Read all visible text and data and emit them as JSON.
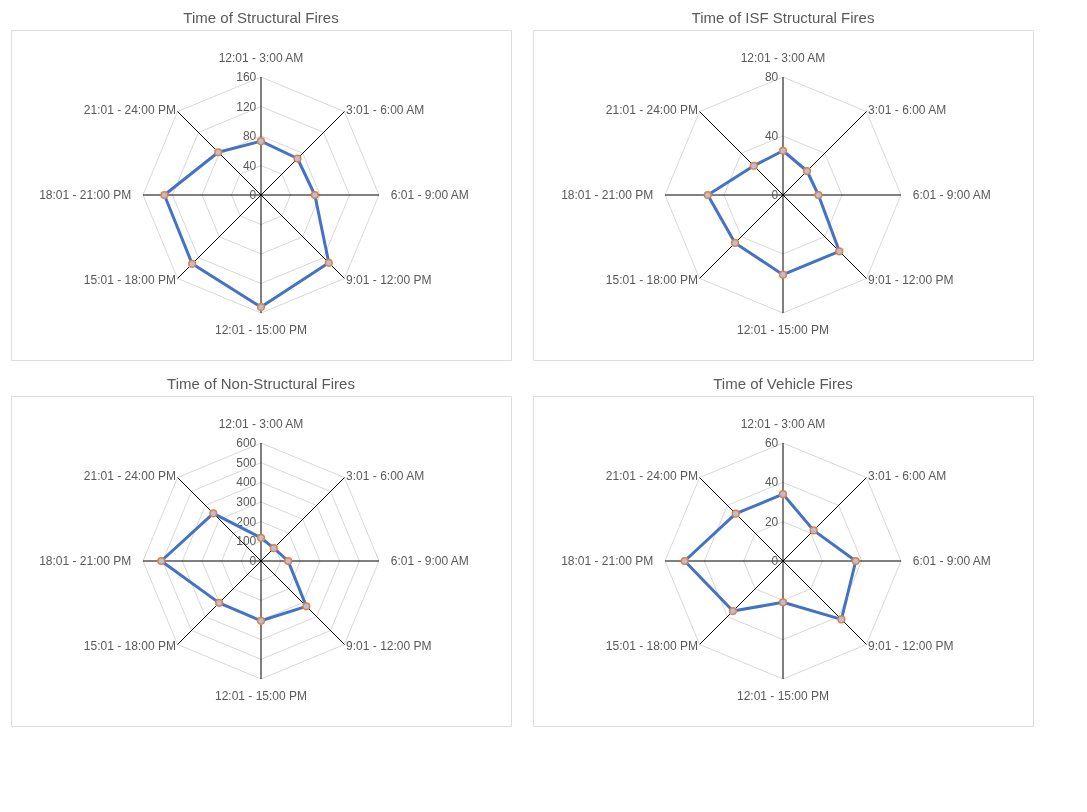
{
  "chart_data": [
    {
      "type": "radar",
      "title": "Time of Structural Fires",
      "categories": [
        "12:01 - 3:00 AM",
        "3:01 - 6:00 AM",
        "6:01 - 9:00 AM",
        "9:01 - 12:00 PM",
        "12:01 - 15:00 PM",
        "15:01 - 18:00 PM",
        "18:01 - 21:00 PM",
        "21:01 - 24:00 PM"
      ],
      "series": [
        {
          "color": "#4472c4",
          "values": [
            73,
            70,
            73,
            130,
            152,
            132,
            131,
            82
          ]
        }
      ],
      "ylim": [
        0,
        160
      ],
      "yticks": [
        0,
        40,
        80,
        120,
        160
      ],
      "grid": true,
      "marker": "circle"
    },
    {
      "type": "radar",
      "title": "Time of ISF Structural Fires",
      "categories": [
        "12:01 - 3:00 AM",
        "3:01 - 6:00 AM",
        "6:01 - 9:00 AM",
        "9:01 - 12:00 PM",
        "12:01 - 15:00 PM",
        "15:01 - 18:00 PM",
        "18:01 - 21:00 PM",
        "21:01 - 24:00 PM"
      ],
      "series": [
        {
          "color": "#4472c4",
          "values": [
            30,
            23,
            24,
            54,
            54,
            46,
            51,
            28
          ]
        }
      ],
      "ylim": [
        0,
        80
      ],
      "yticks": [
        0,
        40,
        80
      ],
      "grid": true,
      "marker": "circle"
    },
    {
      "type": "radar",
      "title": "Time of Non-Structural Fires",
      "categories": [
        "12:01 - 3:00 AM",
        "3:01 - 6:00 AM",
        "6:01 - 9:00 AM",
        "9:01 - 12:00 PM",
        "12:01 - 15:00 PM",
        "15:01 - 18:00 PM",
        "18:01 - 21:00 PM",
        "21:01 - 24:00 PM"
      ],
      "series": [
        {
          "color": "#4472c4",
          "values": [
            118,
            92,
            138,
            326,
            304,
            301,
            507,
            343
          ]
        }
      ],
      "ylim": [
        0,
        600
      ],
      "yticks": [
        0,
        100,
        200,
        300,
        400,
        500,
        600
      ],
      "grid": true,
      "marker": "circle"
    },
    {
      "type": "radar",
      "title": "Time of Vehicle Fires",
      "categories": [
        "12:01 - 3:00 AM",
        "3:01 - 6:00 AM",
        "6:01 - 9:00 AM",
        "9:01 - 12:00 PM",
        "12:01 - 15:00 PM",
        "15:01 - 18:00 PM",
        "18:01 - 21:00 PM",
        "21:01 - 24:00 PM"
      ],
      "series": [
        {
          "color": "#4472c4",
          "values": [
            34,
            22,
            37,
            42,
            21,
            36,
            50,
            34
          ]
        }
      ],
      "ylim": [
        0,
        60
      ],
      "yticks": [
        0,
        20,
        40,
        60
      ],
      "grid": true,
      "marker": "circle"
    }
  ]
}
